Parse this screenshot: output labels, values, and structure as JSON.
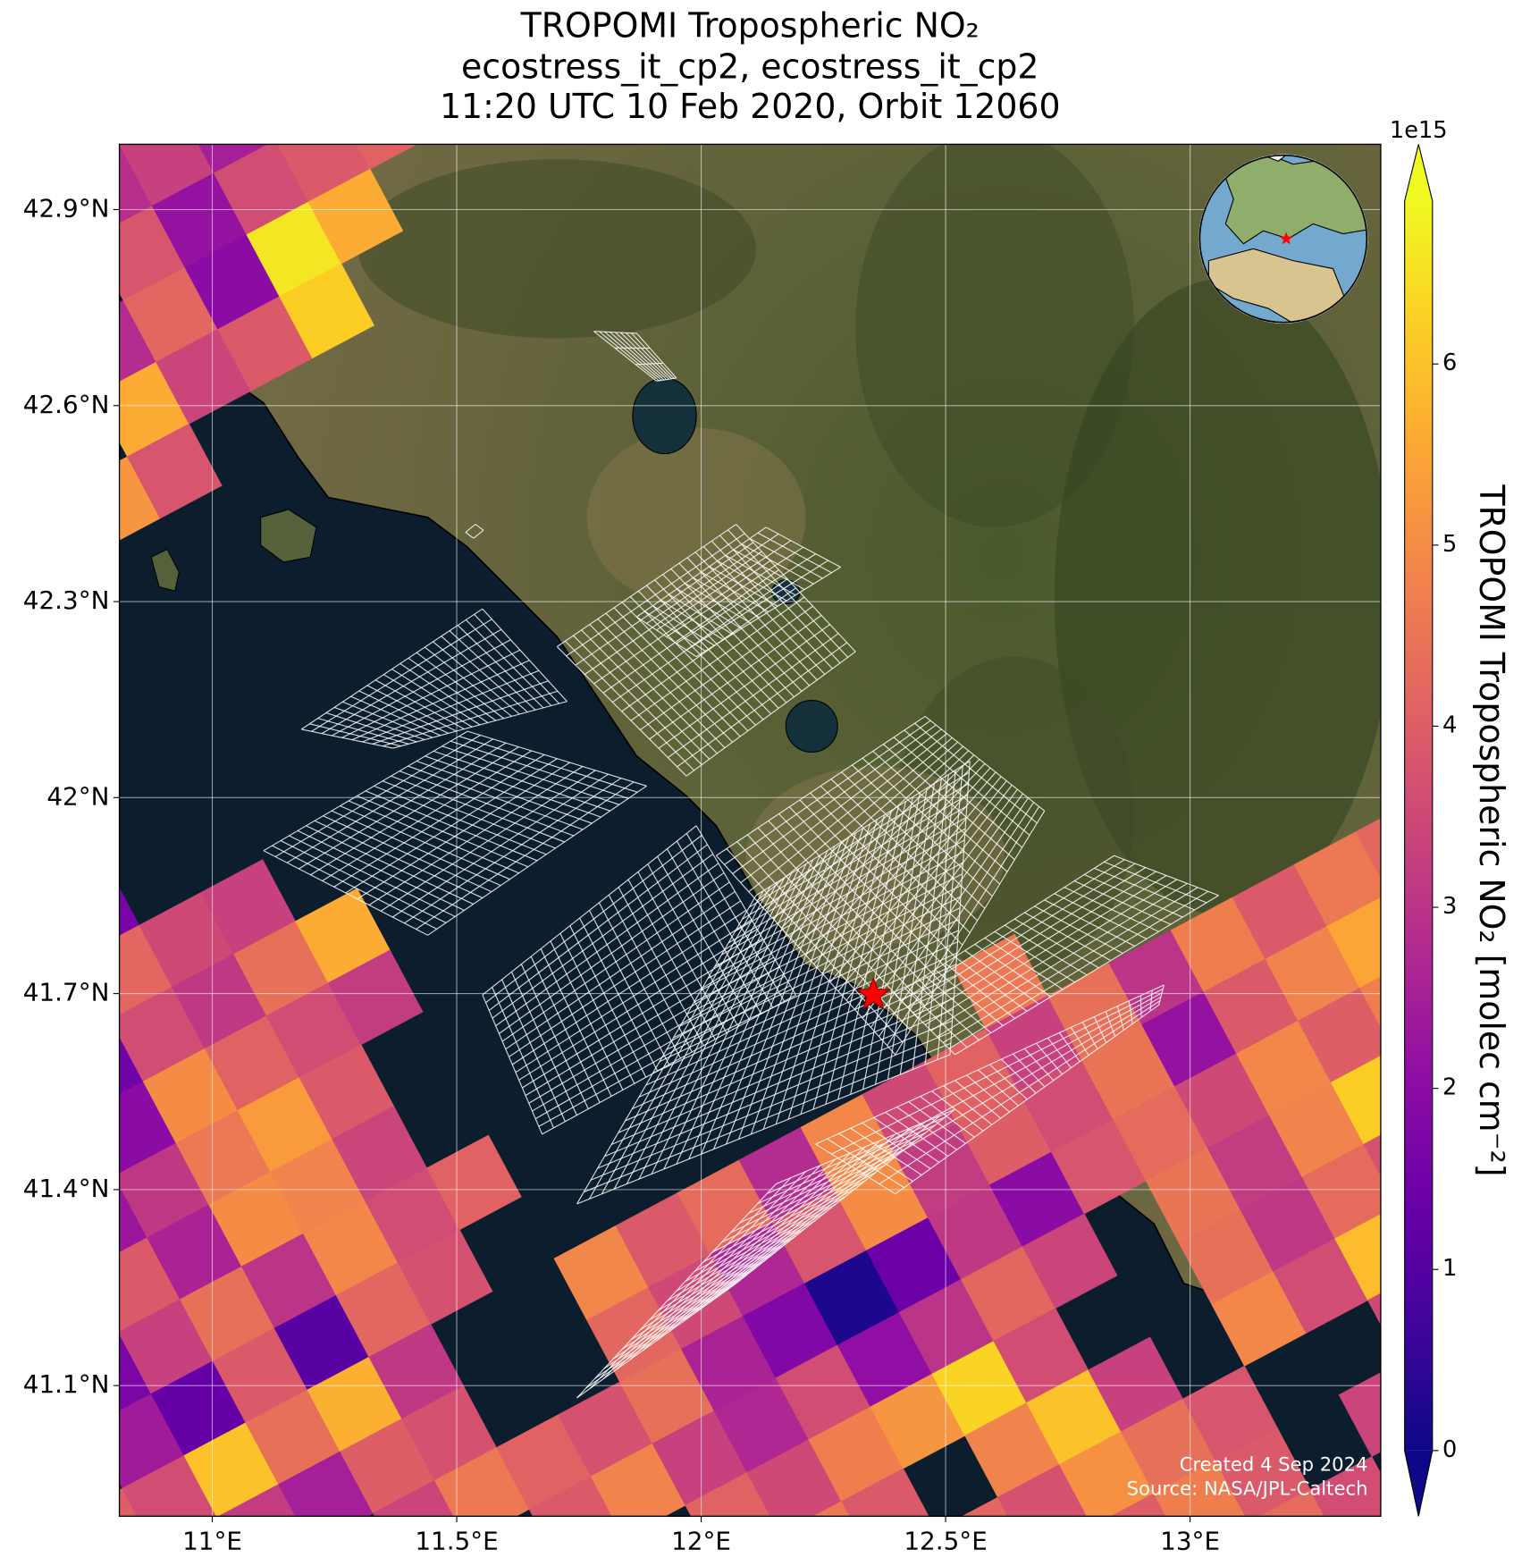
{
  "chart_data": {
    "type": "map",
    "title": "TROPOMI Tropospheric NO₂",
    "subtitle": [
      "ecostress_it_cp2, ecostress_it_cp2",
      "11:20 UTC 10 Feb 2020, Orbit 12060"
    ],
    "xlim": [
      10.81,
      13.39
    ],
    "ylim": [
      40.9,
      43.0
    ],
    "xticks": [
      {
        "value": 11,
        "label": "11°E"
      },
      {
        "value": 11.5,
        "label": "11.5°E"
      },
      {
        "value": 12,
        "label": "12°E"
      },
      {
        "value": 12.5,
        "label": "12.5°E"
      },
      {
        "value": 13,
        "label": "13°E"
      }
    ],
    "yticks": [
      {
        "value": 41.1,
        "label": "41.1°N"
      },
      {
        "value": 41.4,
        "label": "41.4°N"
      },
      {
        "value": 41.7,
        "label": "41.7°N"
      },
      {
        "value": 42,
        "label": "42°N"
      },
      {
        "value": 42.3,
        "label": "42.3°N"
      },
      {
        "value": 42.6,
        "label": "42.6°N"
      },
      {
        "value": 42.9,
        "label": "42.9°N"
      }
    ],
    "grid": true,
    "colormap": "plasma",
    "colorbar": {
      "label": "TROPOMI Tropospheric NO₂ [molec cm⁻²]",
      "offset": "1e15",
      "lim": [
        0,
        6.9
      ],
      "ticks": [
        0,
        1,
        2,
        3,
        4,
        5,
        6
      ]
    },
    "pixels": [
      [
        null,
        null,
        null,
        null,
        null,
        null,
        null,
        null,
        null,
        2.9,
        3.3,
        2.5,
        null,
        null,
        null,
        null,
        null,
        null,
        null,
        null,
        null,
        null,
        null
      ],
      [
        null,
        null,
        null,
        null,
        null,
        null,
        null,
        null,
        null,
        3.8,
        2.2,
        3.6,
        3.9,
        4.1,
        null,
        null,
        null,
        null,
        null,
        null,
        null,
        null,
        null
      ],
      [
        null,
        null,
        null,
        null,
        null,
        null,
        null,
        null,
        2.8,
        4.2,
        2.0,
        6.6,
        5.6,
        null,
        null,
        null,
        null,
        null,
        null,
        null,
        null,
        null,
        null
      ],
      [
        null,
        null,
        null,
        null,
        null,
        null,
        null,
        null,
        5.6,
        3.4,
        3.9,
        6.2,
        null,
        null,
        null,
        null,
        null,
        null,
        null,
        null,
        null,
        null,
        null
      ],
      [
        null,
        null,
        null,
        null,
        null,
        null,
        null,
        5.2,
        3.8,
        null,
        null,
        null,
        null,
        null,
        null,
        null,
        null,
        null,
        null,
        null,
        null,
        null,
        null
      ],
      [
        null,
        null,
        null,
        null,
        null,
        null,
        null,
        null,
        null,
        null,
        null,
        null,
        null,
        null,
        null,
        null,
        null,
        null,
        null,
        null,
        null,
        null,
        null
      ],
      [
        null,
        null,
        null,
        null,
        null,
        null,
        null,
        null,
        null,
        null,
        null,
        null,
        null,
        null,
        null,
        null,
        null,
        null,
        null,
        null,
        null,
        null,
        null
      ],
      [
        null,
        null,
        null,
        null,
        null,
        null,
        null,
        null,
        null,
        null,
        null,
        null,
        null,
        null,
        null,
        null,
        null,
        null,
        null,
        null,
        null,
        null,
        null
      ],
      [
        null,
        null,
        null,
        null,
        null,
        null,
        null,
        null,
        null,
        null,
        null,
        null,
        null,
        null,
        null,
        null,
        null,
        null,
        null,
        null,
        null,
        null,
        null
      ],
      [
        null,
        null,
        null,
        null,
        1.6,
        null,
        null,
        null,
        null,
        null,
        null,
        null,
        null,
        null,
        null,
        null,
        null,
        null,
        null,
        null,
        null,
        null,
        null
      ],
      [
        null,
        null,
        null,
        null,
        4.2,
        3.5,
        3.3,
        null,
        null,
        null,
        null,
        null,
        null,
        null,
        null,
        null,
        null,
        null,
        null,
        null,
        null,
        null,
        null
      ],
      [
        null,
        null,
        null,
        1.5,
        3.6,
        3.1,
        4.4,
        5.6,
        null,
        null,
        null,
        null,
        null,
        null,
        null,
        null,
        null,
        null,
        null,
        null,
        null,
        null,
        null
      ],
      [
        null,
        null,
        null,
        2.0,
        5.0,
        4.1,
        3.6,
        3.2,
        null,
        null,
        null,
        null,
        null,
        null,
        null,
        null,
        null,
        null,
        null,
        null,
        null,
        null,
        null
      ],
      [
        null,
        null,
        2.3,
        3.1,
        4.6,
        5.3,
        3.9,
        null,
        null,
        null,
        null,
        null,
        null,
        null,
        null,
        null,
        null,
        null,
        null,
        null,
        null,
        null,
        null
      ],
      [
        null,
        null,
        3.9,
        2.6,
        5.0,
        4.8,
        3.4,
        null,
        null,
        null,
        null,
        null,
        null,
        null,
        null,
        null,
        null,
        null,
        null,
        null,
        null,
        null,
        null
      ],
      [
        null,
        1.7,
        3.3,
        4.4,
        3.0,
        4.9,
        3.6,
        4.1,
        null,
        null,
        null,
        null,
        null,
        null,
        null,
        null,
        null,
        null,
        null,
        null,
        null,
        null,
        null
      ],
      [
        null,
        2.4,
        1.3,
        3.9,
        1.1,
        4.2,
        3.7,
        null,
        null,
        null,
        null,
        null,
        null,
        null,
        null,
        4.6,
        null,
        null,
        null,
        null,
        null,
        null,
        null
      ],
      [
        4.0,
        3.6,
        6.0,
        4.4,
        5.7,
        3.1,
        null,
        null,
        4.9,
        3.9,
        4.3,
        2.8,
        4.9,
        3.5,
        4.1,
        3.3,
        4.4,
        3.0,
        4.7,
        3.9,
        4.6,
        4.2,
        null
      ],
      [
        null,
        null,
        3.2,
        2.5,
        4.0,
        3.7,
        null,
        null,
        4.2,
        3.5,
        2.7,
        3.8,
        5.0,
        3.2,
        4.0,
        3.6,
        4.5,
        2.2,
        3.9,
        4.8,
        5.5,
        null,
        null
      ],
      [
        null,
        null,
        null,
        null,
        3.4,
        4.6,
        4.1,
        3.7,
        4.4,
        2.6,
        1.8,
        0.2,
        1.4,
        3.1,
        2.0,
        3.8,
        4.3,
        3.5,
        4.9,
        4.0,
        4.7,
        null,
        null
      ],
      [
        null,
        null,
        null,
        null,
        null,
        null,
        3.9,
        4.8,
        3.3,
        2.7,
        3.6,
        2.1,
        3.0,
        4.2,
        3.4,
        null,
        4.5,
        3.2,
        4.8,
        6.2,
        null,
        null,
        null
      ],
      [
        null,
        null,
        null,
        null,
        null,
        null,
        null,
        null,
        4.1,
        3.5,
        4.7,
        5.2,
        6.3,
        3.6,
        null,
        null,
        4.4,
        3.1,
        4.3,
        3.7,
        null,
        null,
        null
      ],
      [
        null,
        null,
        null,
        null,
        null,
        null,
        null,
        null,
        null,
        4.6,
        3.9,
        null,
        4.8,
        6.0,
        3.3,
        null,
        4.9,
        3.6,
        5.9,
        null,
        null,
        null,
        null
      ],
      [
        null,
        null,
        null,
        null,
        null,
        null,
        null,
        null,
        null,
        null,
        null,
        4.2,
        3.7,
        5.1,
        4.4,
        3.8,
        null,
        null,
        3.5,
        null,
        null,
        null,
        null
      ],
      [
        null,
        null,
        null,
        null,
        null,
        null,
        null,
        null,
        null,
        null,
        null,
        null,
        null,
        4.0,
        4.7,
        3.9,
        null,
        3.4,
        null,
        null,
        null,
        null,
        null
      ],
      [
        null,
        null,
        null,
        null,
        null,
        null,
        null,
        null,
        null,
        null,
        null,
        null,
        null,
        null,
        null,
        4.3,
        3.6,
        null,
        null,
        null,
        null,
        null,
        null
      ]
    ],
    "annotations": [
      "Created 4 Sep 2024",
      "Source: NASA/JPL-Caltech"
    ]
  }
}
